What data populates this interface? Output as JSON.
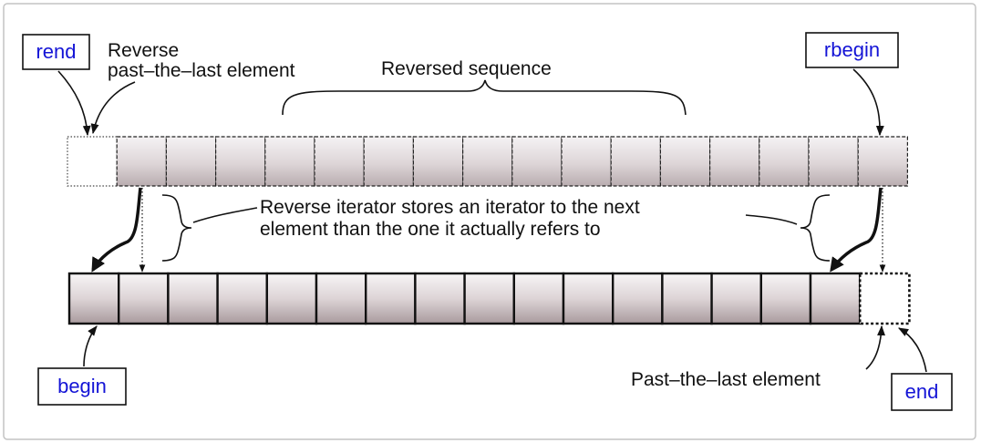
{
  "diagram": {
    "labels": {
      "rend": "rend",
      "rbegin": "rbegin",
      "begin": "begin",
      "end": "end"
    },
    "annotations": {
      "reverse_past_line1": "Reverse",
      "reverse_past_line2": "past–the–last element",
      "reversed_sequence": "Reversed sequence",
      "stores_line1": "Reverse iterator stores an iterator to the next",
      "stores_line2": "element than the one it actually refers to",
      "past_the_last": "Past–the–last element"
    },
    "top_row": {
      "element_count": 16,
      "past_the_end_slots": 1
    },
    "bottom_row": {
      "element_count": 16,
      "past_the_end_slots": 1
    },
    "colors": {
      "iterator_label": "#1414d6",
      "text": "#111111",
      "cell_fill_light": "#f4f2f3",
      "cell_fill_dark": "#aa9c9f"
    }
  }
}
